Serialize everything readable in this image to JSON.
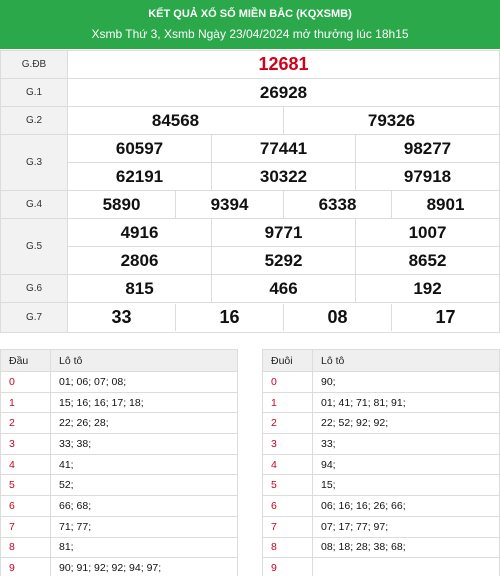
{
  "header": {
    "title": "KẾT QUẢ XỔ SỐ MIỀN BẮC (KQXSMB)",
    "subtitle": "Xsmb Thứ 3, Xsmb Ngày 23/04/2024 mở thưởng lúc 18h15"
  },
  "prizes": {
    "gdb": {
      "label": "G.ĐB",
      "values": [
        "12681"
      ]
    },
    "g1": {
      "label": "G.1",
      "values": [
        "26928"
      ]
    },
    "g2": {
      "label": "G.2",
      "values": [
        "84568",
        "79326"
      ]
    },
    "g3": {
      "label": "G.3",
      "values": [
        "60597",
        "77441",
        "98277",
        "62191",
        "30322",
        "97918"
      ]
    },
    "g4": {
      "label": "G.4",
      "values": [
        "5890",
        "9394",
        "6338",
        "8901"
      ]
    },
    "g5": {
      "label": "G.5",
      "values": [
        "4916",
        "9771",
        "1007",
        "2806",
        "5292",
        "8652"
      ]
    },
    "g6": {
      "label": "G.6",
      "values": [
        "815",
        "466",
        "192"
      ]
    },
    "g7": {
      "label": "G.7",
      "values": [
        "33",
        "16",
        "08",
        "17"
      ]
    }
  },
  "loto_dau": {
    "head_key": "Đầu",
    "head_val": "Lô tô",
    "rows": [
      {
        "k": "0",
        "v": "01; 06; 07; 08;"
      },
      {
        "k": "1",
        "v": "15; 16; 16; 17; 18;"
      },
      {
        "k": "2",
        "v": "22; 26; 28;"
      },
      {
        "k": "3",
        "v": "33; 38;"
      },
      {
        "k": "4",
        "v": "41;"
      },
      {
        "k": "5",
        "v": "52;"
      },
      {
        "k": "6",
        "v": "66; 68;"
      },
      {
        "k": "7",
        "v": "71; 77;"
      },
      {
        "k": "8",
        "v": "81;"
      },
      {
        "k": "9",
        "v": "90; 91; 92; 92; 94; 97;"
      }
    ]
  },
  "loto_duoi": {
    "head_key": "Đuôi",
    "head_val": "Lô tô",
    "rows": [
      {
        "k": "0",
        "v": "90;"
      },
      {
        "k": "1",
        "v": "01; 41; 71; 81; 91;"
      },
      {
        "k": "2",
        "v": "22; 52; 92; 92;"
      },
      {
        "k": "3",
        "v": "33;"
      },
      {
        "k": "4",
        "v": "94;"
      },
      {
        "k": "5",
        "v": "15;"
      },
      {
        "k": "6",
        "v": "06; 16; 16; 26; 66;"
      },
      {
        "k": "7",
        "v": "07; 17; 77; 97;"
      },
      {
        "k": "8",
        "v": "08; 18; 28; 38; 68;"
      },
      {
        "k": "9",
        "v": ""
      }
    ]
  }
}
